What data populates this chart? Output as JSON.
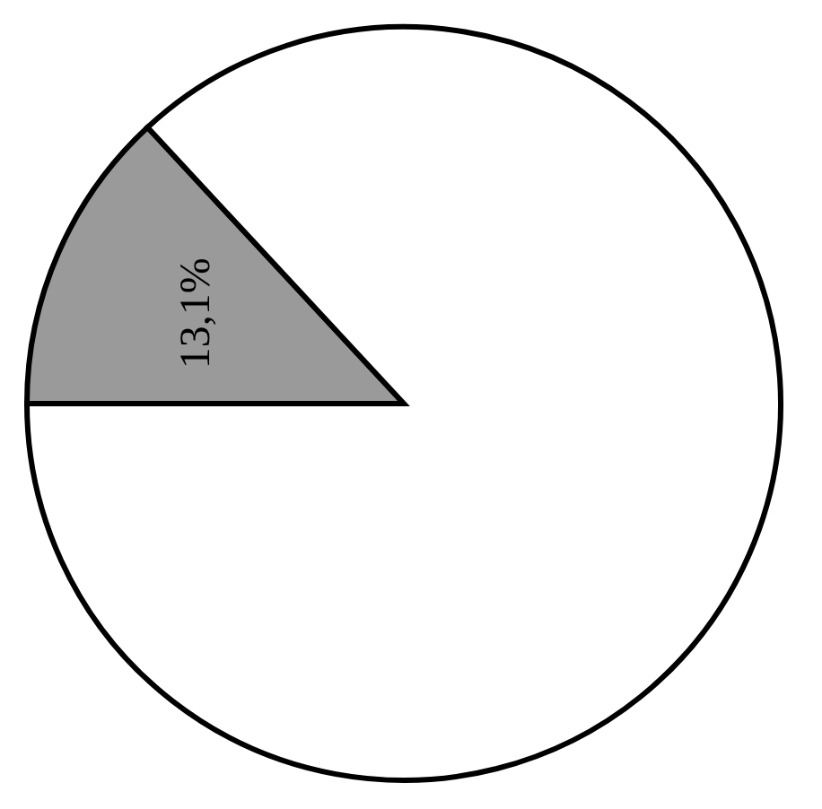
{
  "chart_data": {
    "type": "pie",
    "categories": [
      null,
      null
    ],
    "values": [
      13.1,
      86.9
    ],
    "colors": [
      "#9a9a9a",
      "#ffffff"
    ],
    "value_labels": [
      "13,1%",
      null
    ],
    "legend": false
  }
}
